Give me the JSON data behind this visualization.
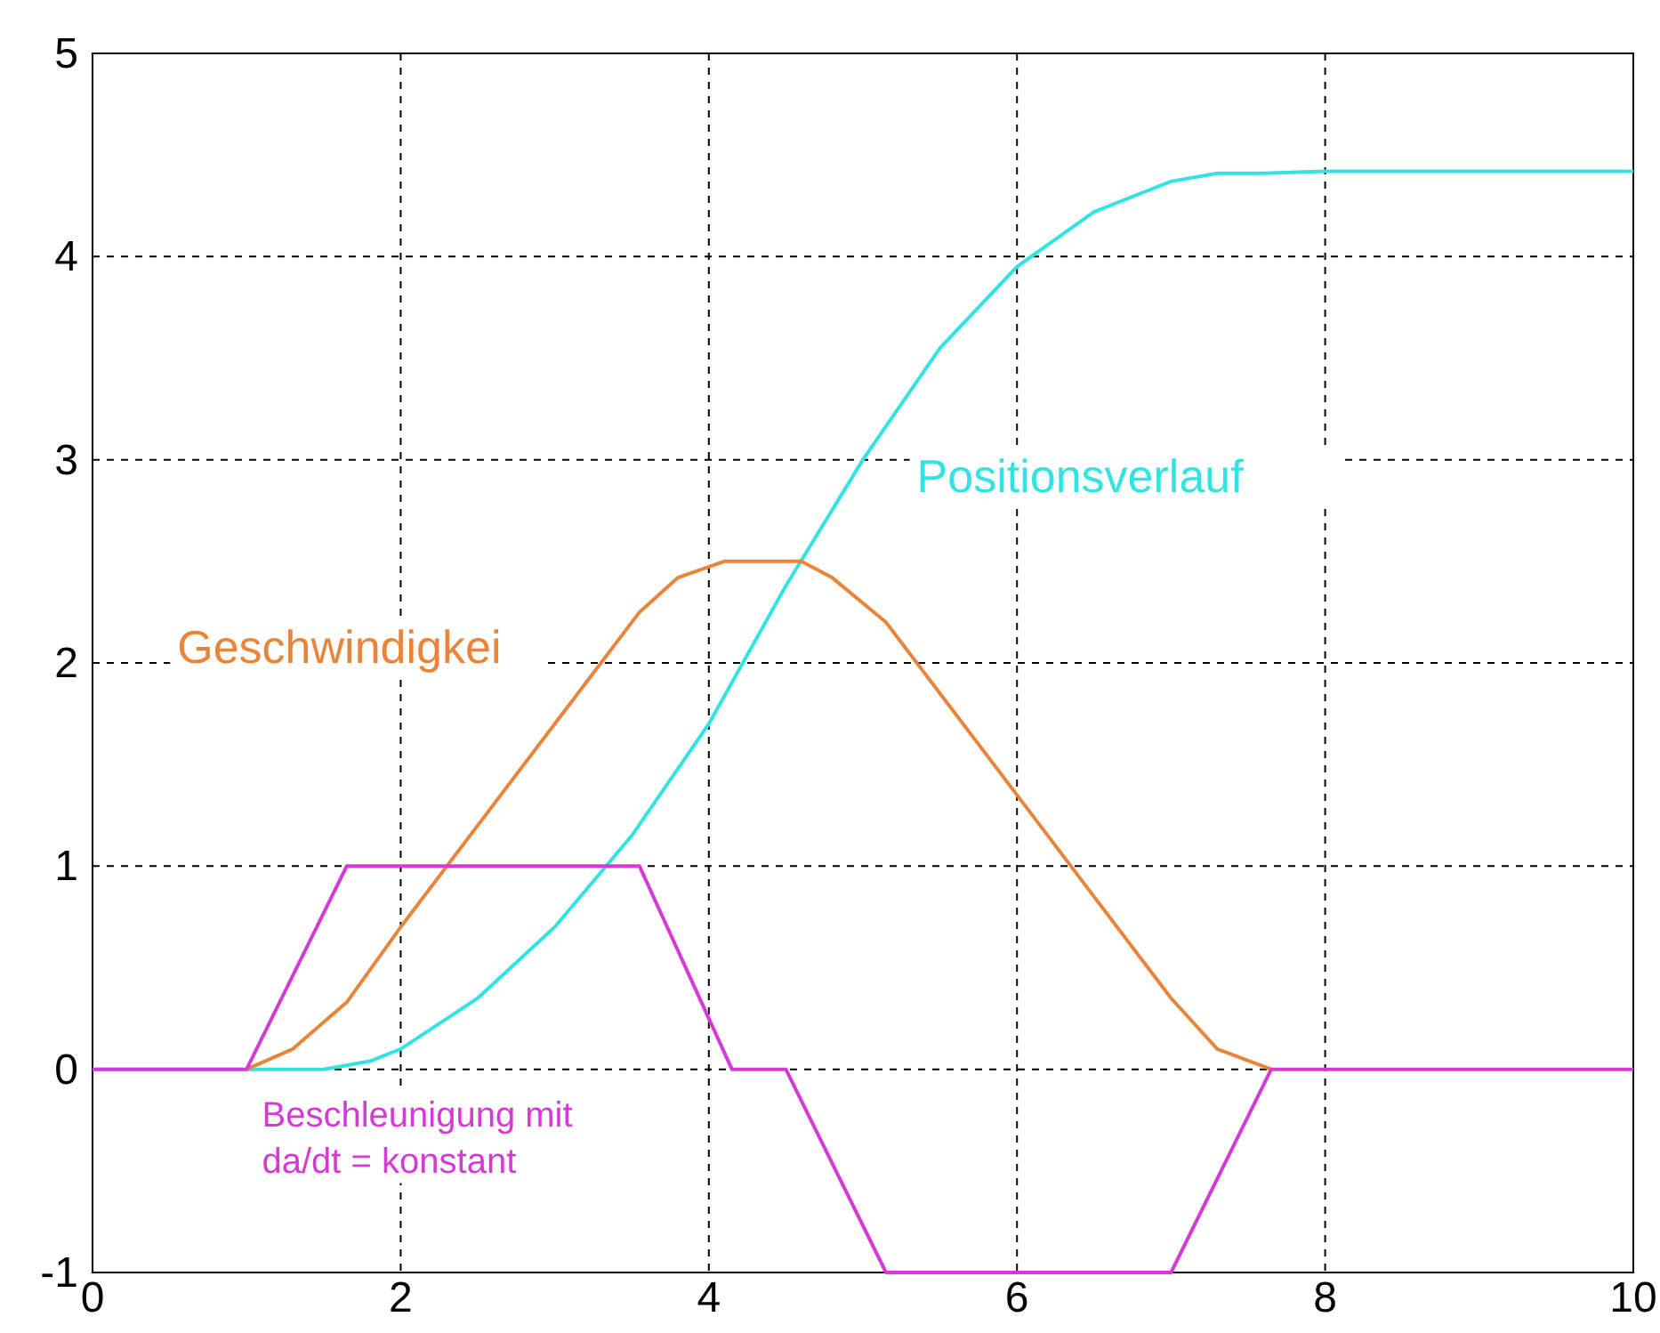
{
  "chart_data": {
    "type": "line",
    "xlim": [
      0,
      10
    ],
    "ylim": [
      -1,
      5
    ],
    "xticks": [
      0,
      2,
      4,
      6,
      8,
      10
    ],
    "yticks": [
      -1,
      0,
      1,
      2,
      3,
      4,
      5
    ],
    "grid": true,
    "marker": "none",
    "line_style": "solid",
    "series": [
      {
        "name": "Positionsverlauf",
        "color": "#33e3e3",
        "x": [
          0,
          1.5,
          1.8,
          2,
          2.5,
          3,
          3.5,
          4,
          4.5,
          5,
          5.5,
          6,
          6.5,
          7,
          7.3,
          7.6,
          8,
          10
        ],
        "values": [
          0,
          0,
          0.04,
          0.1,
          0.35,
          0.7,
          1.15,
          1.7,
          2.38,
          3.0,
          3.55,
          3.95,
          4.22,
          4.37,
          4.41,
          4.41,
          4.42,
          4.42
        ]
      },
      {
        "name": "Geschwindigkei",
        "color": "#e8853a",
        "x": [
          1,
          1.3,
          1.65,
          2,
          2.5,
          3,
          3.55,
          3.8,
          4.1,
          4.6,
          4.8,
          5.15,
          5.5,
          6,
          6.5,
          7,
          7.3,
          7.65
        ],
        "values": [
          0,
          0.1,
          0.33,
          0.7,
          1.2,
          1.7,
          2.25,
          2.42,
          2.5,
          2.5,
          2.42,
          2.2,
          1.85,
          1.35,
          0.85,
          0.35,
          0.1,
          0
        ]
      },
      {
        "name": "Beschleunigung mit da/dt = konstant",
        "color": "#d63ad6",
        "x": [
          0,
          1,
          1.65,
          3.55,
          4.15,
          4.5,
          5.15,
          7,
          7.65,
          10
        ],
        "values": [
          0,
          0,
          1,
          1,
          0,
          0,
          -1,
          -1,
          0,
          0
        ]
      }
    ]
  }
}
